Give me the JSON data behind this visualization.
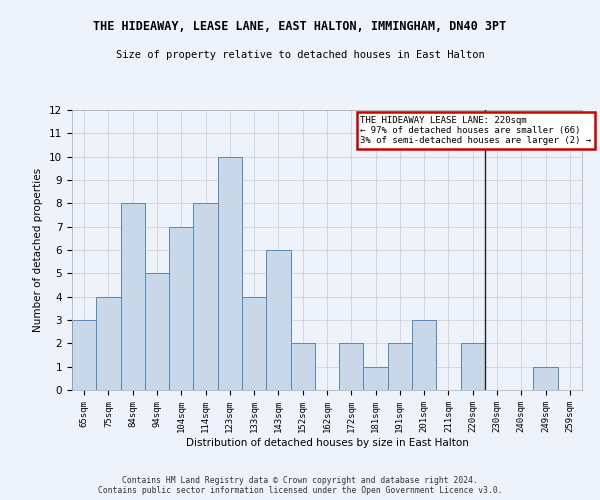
{
  "title": "THE HIDEAWAY, LEASE LANE, EAST HALTON, IMMINGHAM, DN40 3PT",
  "subtitle": "Size of property relative to detached houses in East Halton",
  "xlabel": "Distribution of detached houses by size in East Halton",
  "ylabel": "Number of detached properties",
  "footer_line1": "Contains HM Land Registry data © Crown copyright and database right 2024.",
  "footer_line2": "Contains public sector information licensed under the Open Government Licence v3.0.",
  "categories": [
    "65sqm",
    "75sqm",
    "84sqm",
    "94sqm",
    "104sqm",
    "114sqm",
    "123sqm",
    "133sqm",
    "143sqm",
    "152sqm",
    "162sqm",
    "172sqm",
    "181sqm",
    "191sqm",
    "201sqm",
    "211sqm",
    "220sqm",
    "230sqm",
    "240sqm",
    "249sqm",
    "259sqm"
  ],
  "values": [
    3,
    4,
    8,
    5,
    7,
    8,
    10,
    4,
    6,
    2,
    0,
    2,
    1,
    2,
    3,
    0,
    2,
    0,
    0,
    1,
    0
  ],
  "bar_color": "#c8d8e8",
  "bar_edge_color": "#5588bb",
  "highlight_index": 16,
  "highlight_line_color": "#222222",
  "annotation_text": "THE HIDEAWAY LEASE LANE: 220sqm\n← 97% of detached houses are smaller (66)\n3% of semi-detached houses are larger (2) →",
  "annotation_box_color": "#ffffff",
  "annotation_box_edge_color": "#cc0000",
  "ylim": [
    0,
    12
  ],
  "yticks": [
    0,
    1,
    2,
    3,
    4,
    5,
    6,
    7,
    8,
    9,
    10,
    11,
    12
  ],
  "grid_color": "#cccccc",
  "background_color": "#eef2fa"
}
